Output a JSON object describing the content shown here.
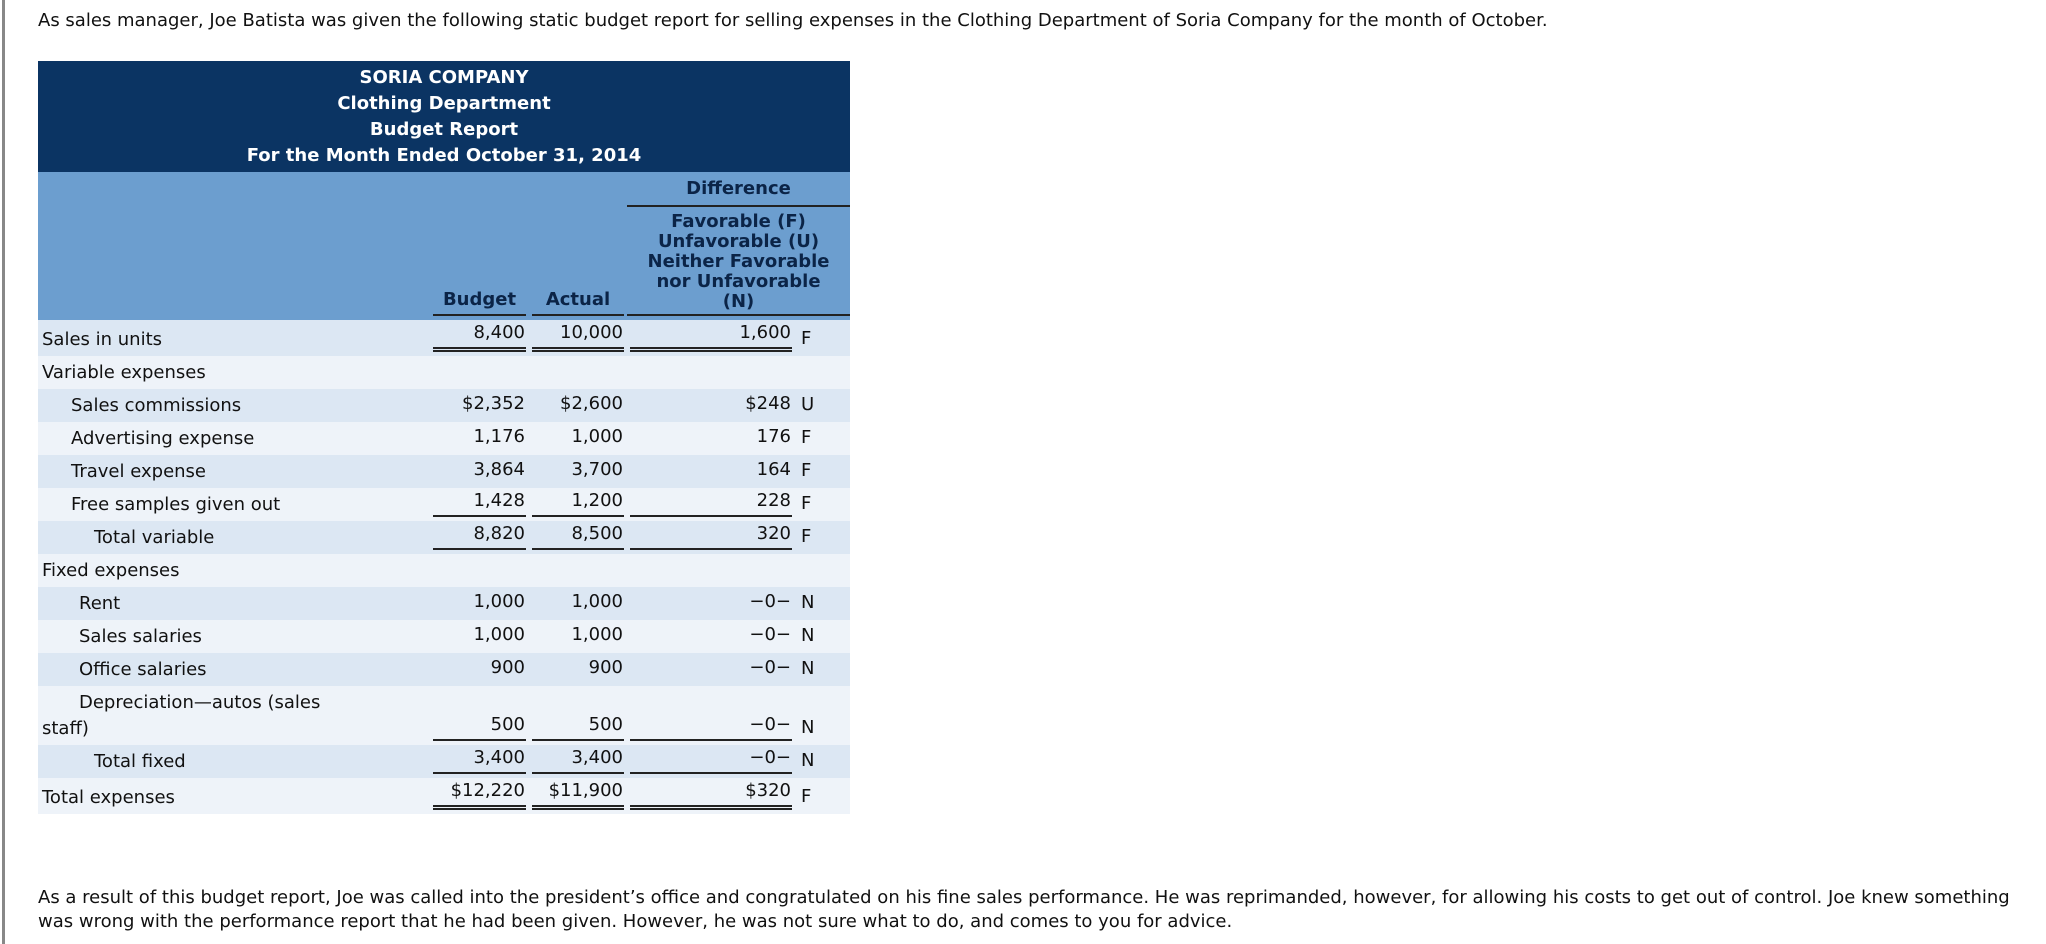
{
  "intro": "As sales manager, Joe Batista was given the following static budget report for selling expenses in the Clothing Department of Soria Company for the month of October.",
  "report": {
    "header": [
      "SORIA COMPANY",
      "Clothing Department",
      "Budget Report",
      "For the Month Ended October 31, 2014"
    ],
    "columns": {
      "budget": "Budget",
      "actual": "Actual",
      "difference": "Difference",
      "difference_legend": [
        "Favorable (F)",
        "Unfavorable (U)",
        "Neither Favorable",
        "nor Unfavorable",
        "(N)"
      ]
    },
    "rows": [
      {
        "label": "Sales in units",
        "budget": "8,400",
        "actual": "10,000",
        "difference": "1,600",
        "flag": "F"
      },
      {
        "label": "Variable expenses"
      },
      {
        "label": "Sales commissions",
        "budget": "$2,352",
        "actual": "$2,600",
        "difference": "$248",
        "flag": "U"
      },
      {
        "label": "Advertising expense",
        "budget": "1,176",
        "actual": "1,000",
        "difference": "176",
        "flag": "F"
      },
      {
        "label": "Travel expense",
        "budget": "3,864",
        "actual": "3,700",
        "difference": "164",
        "flag": "F"
      },
      {
        "label": "Free samples given out",
        "budget": "1,428",
        "actual": "1,200",
        "difference": "228",
        "flag": "F"
      },
      {
        "label": "Total variable",
        "budget": "8,820",
        "actual": "8,500",
        "difference": "320",
        "flag": "F"
      },
      {
        "label": "Fixed expenses"
      },
      {
        "label": "Rent",
        "budget": "1,000",
        "actual": "1,000",
        "difference": "−0−",
        "flag": "N"
      },
      {
        "label": "Sales salaries",
        "budget": "1,000",
        "actual": "1,000",
        "difference": "−0−",
        "flag": "N"
      },
      {
        "label": "Office salaries",
        "budget": "900",
        "actual": "900",
        "difference": "−0−",
        "flag": "N"
      },
      {
        "label": "Depreciation—autos (sales staff)",
        "budget": "500",
        "actual": "500",
        "difference": "−0−",
        "flag": "N"
      },
      {
        "label": "Total fixed",
        "budget": "3,400",
        "actual": "3,400",
        "difference": "−0−",
        "flag": "N"
      },
      {
        "label": "Total expenses",
        "budget": "$12,220",
        "actual": "$11,900",
        "difference": "$320",
        "flag": "F"
      }
    ]
  },
  "conclusion": "As a result of this budget report, Joe was called into the president’s office and congratulated on his fine sales performance. He was reprimanded, however, for allowing his costs to get out of control. Joe knew something was wrong with the performance report that he had been given. However, he was not sure what to do, and comes to you for advice."
}
